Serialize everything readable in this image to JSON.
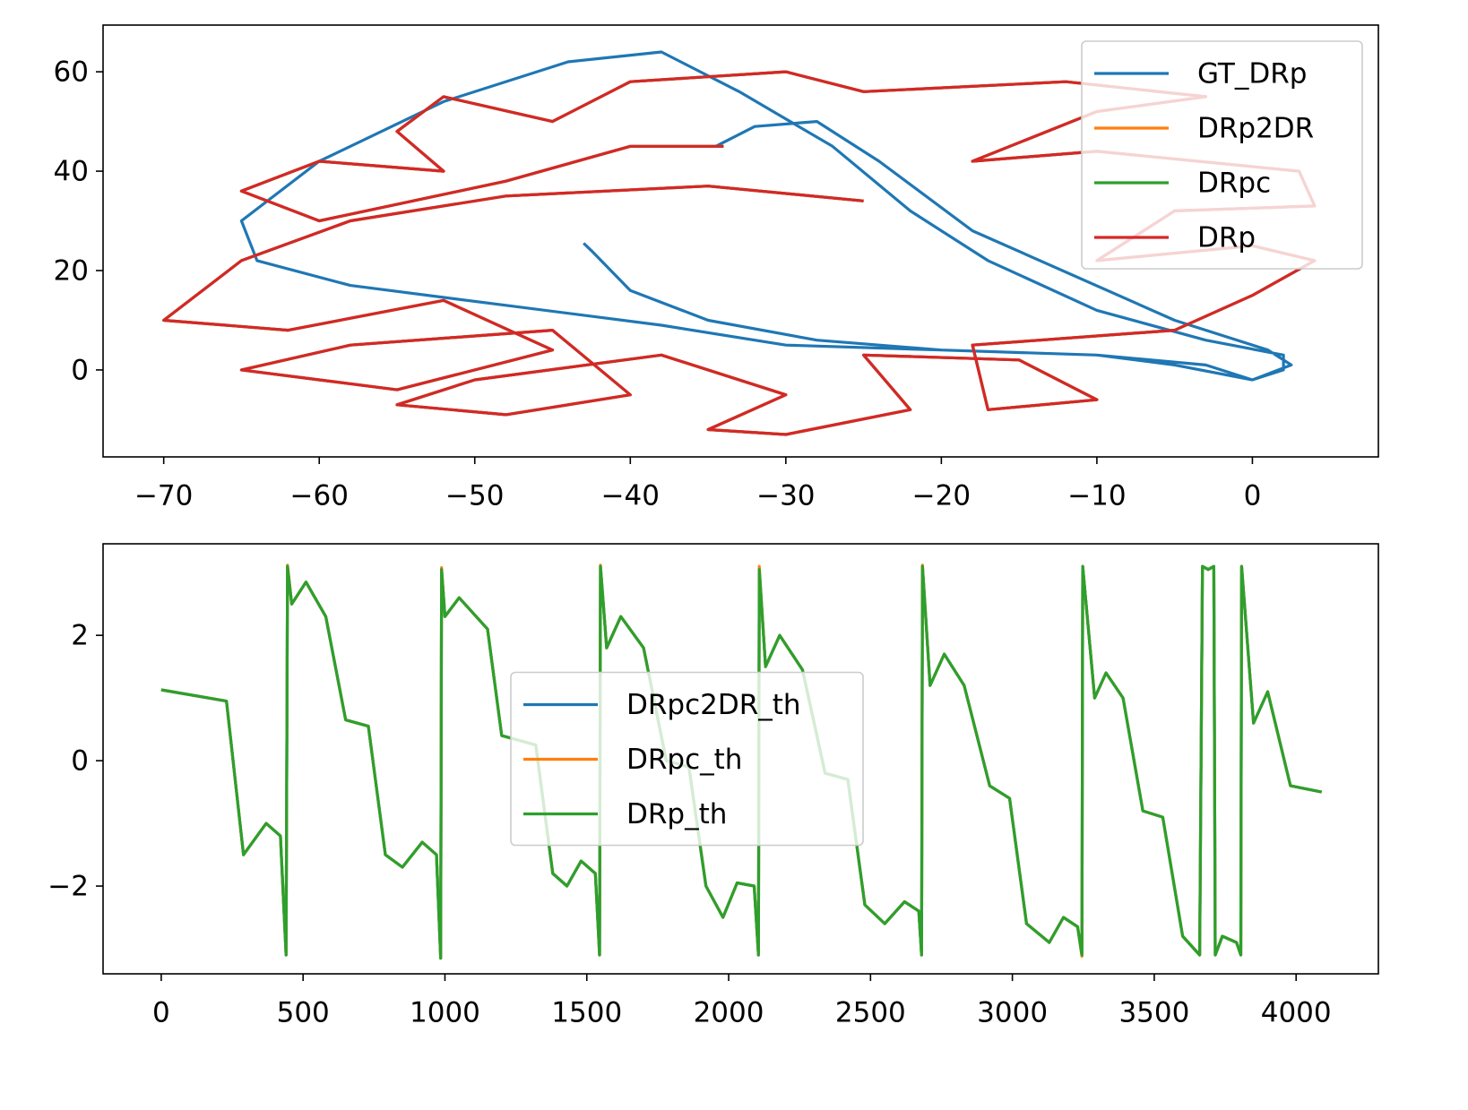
{
  "chart_data": [
    {
      "type": "line",
      "legend": "upper right",
      "xlim": [
        -73.9,
        8.1
      ],
      "ylim": [
        -17.5,
        69.4
      ],
      "xticks": [
        {
          "value": -70,
          "label": "−70"
        },
        {
          "value": -60,
          "label": "−60"
        },
        {
          "value": -50,
          "label": "−50"
        },
        {
          "value": -40,
          "label": "−40"
        },
        {
          "value": -30,
          "label": "−30"
        },
        {
          "value": -20,
          "label": "−20"
        },
        {
          "value": -10,
          "label": "−10"
        },
        0
      ],
      "yticks": [
        0,
        20,
        40,
        60
      ],
      "series": [
        {
          "name": "GT_DRp",
          "color": "#1f77b4",
          "x": [
            -43,
            -42.5,
            -40,
            -35,
            -28,
            -20,
            -10,
            -5,
            0,
            2,
            2,
            -3,
            -10,
            -17,
            -22,
            -27,
            -33,
            -38,
            -44,
            -52,
            -60,
            -65,
            -64,
            -58,
            -48,
            -38,
            -30,
            -20,
            -10,
            -3,
            0,
            2.5,
            1,
            -5,
            -18,
            -24,
            -28,
            -32,
            -34.5
          ],
          "values": [
            25.5,
            24,
            16,
            10,
            6,
            4,
            3,
            1,
            -2,
            0,
            3,
            6,
            12,
            22,
            32,
            45,
            56,
            64,
            62,
            54,
            42,
            30,
            22,
            17,
            13,
            9,
            5,
            4,
            3,
            1,
            -2,
            1,
            4,
            10,
            28,
            42,
            50,
            49,
            45
          ]
        },
        {
          "name": "DRp2DR",
          "color": "#ff7f0e",
          "x": [
            -25,
            -35,
            -48,
            -58,
            -65,
            -70,
            -62,
            -52,
            -45,
            -55,
            -60,
            -65,
            -58,
            -45,
            -40,
            -48,
            -55,
            -50,
            -38,
            -30,
            -35,
            -30,
            -22,
            -25,
            -15,
            -10,
            -17,
            -18,
            -5,
            0,
            4,
            0,
            -10,
            -5,
            4,
            3,
            -10,
            -18,
            -10,
            -3,
            -12,
            -25,
            -30,
            -40,
            -45,
            -52,
            -55,
            -52,
            -60,
            -65,
            -60,
            -48,
            -40,
            -34
          ],
          "values": [
            34,
            37,
            35,
            30,
            22,
            10,
            8,
            14,
            4,
            -4,
            -2,
            0,
            5,
            8,
            -5,
            -9,
            -7,
            -2,
            3,
            -5,
            -12,
            -13,
            -8,
            3,
            2,
            -6,
            -8,
            5,
            8,
            15,
            22,
            25,
            22,
            32,
            33,
            40,
            44,
            42,
            52,
            55,
            58,
            56,
            60,
            58,
            50,
            55,
            48,
            40,
            42,
            36,
            30,
            38,
            45,
            45
          ]
        },
        {
          "name": "DRpc",
          "color": "#2ca02c",
          "x": [
            -25,
            -35,
            -48,
            -58,
            -65,
            -70,
            -62,
            -52,
            -45,
            -55,
            -60,
            -65,
            -58,
            -45,
            -40,
            -48,
            -55,
            -50,
            -38,
            -30,
            -35,
            -30,
            -22,
            -25,
            -15,
            -10,
            -17,
            -18,
            -5,
            0,
            4,
            0,
            -10,
            -5,
            4,
            3,
            -10,
            -18,
            -10,
            -3,
            -12,
            -25,
            -30,
            -40,
            -45,
            -52,
            -55,
            -52,
            -60,
            -65,
            -60,
            -48,
            -40,
            -34
          ],
          "values": [
            34,
            37,
            35,
            30,
            22,
            10,
            8,
            14,
            4,
            -4,
            -2,
            0,
            5,
            8,
            -5,
            -9,
            -7,
            -2,
            3,
            -5,
            -12,
            -13,
            -8,
            3,
            2,
            -6,
            -8,
            5,
            8,
            15,
            22,
            25,
            22,
            32,
            33,
            40,
            44,
            42,
            52,
            55,
            58,
            56,
            60,
            58,
            50,
            55,
            48,
            40,
            42,
            36,
            30,
            38,
            45,
            45
          ]
        },
        {
          "name": "DRp",
          "color": "#d62728",
          "x": [
            -25,
            -35,
            -48,
            -58,
            -65,
            -70,
            -62,
            -52,
            -45,
            -55,
            -60,
            -65,
            -58,
            -45,
            -40,
            -48,
            -55,
            -50,
            -38,
            -30,
            -35,
            -30,
            -22,
            -25,
            -15,
            -10,
            -17,
            -18,
            -5,
            0,
            4,
            0,
            -10,
            -5,
            4,
            3,
            -10,
            -18,
            -10,
            -3,
            -12,
            -25,
            -30,
            -40,
            -45,
            -52,
            -55,
            -52,
            -60,
            -65,
            -60,
            -48,
            -40,
            -34
          ],
          "values": [
            34,
            37,
            35,
            30,
            22,
            10,
            8,
            14,
            4,
            -4,
            -2,
            0,
            5,
            8,
            -5,
            -9,
            -7,
            -2,
            3,
            -5,
            -12,
            -13,
            -8,
            3,
            2,
            -6,
            -8,
            5,
            8,
            15,
            22,
            25,
            22,
            32,
            33,
            40,
            44,
            42,
            52,
            55,
            58,
            56,
            60,
            58,
            50,
            55,
            48,
            40,
            42,
            36,
            30,
            38,
            45,
            45
          ]
        }
      ]
    },
    {
      "type": "line",
      "legend": "center",
      "xlim": [
        -205,
        4290
      ],
      "ylim": [
        -3.4,
        3.46
      ],
      "xticks": [
        0,
        500,
        1000,
        1500,
        2000,
        2500,
        3000,
        3500,
        4000
      ],
      "yticks": [
        {
          "value": -2,
          "label": "−2"
        },
        0,
        2
      ],
      "x": [
        0,
        230,
        290,
        370,
        420,
        440,
        445,
        460,
        510,
        580,
        650,
        730,
        790,
        850,
        920,
        970,
        985,
        988,
        1000,
        1050,
        1150,
        1200,
        1320,
        1380,
        1430,
        1480,
        1530,
        1545,
        1548,
        1570,
        1620,
        1700,
        1780,
        1860,
        1920,
        1980,
        2030,
        2090,
        2105,
        2108,
        2130,
        2180,
        2260,
        2340,
        2420,
        2480,
        2550,
        2620,
        2670,
        2680,
        2683,
        2710,
        2760,
        2830,
        2920,
        2990,
        3050,
        3130,
        3180,
        3230,
        3245,
        3248,
        3290,
        3330,
        3390,
        3460,
        3530,
        3600,
        3660,
        3670,
        3690,
        3710,
        3715,
        3740,
        3790,
        3805,
        3808,
        3850,
        3900,
        3980,
        4090
      ],
      "series": [
        {
          "name": "DRpc2DR_th",
          "color": "#1f77b4",
          "values": [
            1.13,
            0.95,
            -1.5,
            -1.0,
            -1.2,
            -3.1,
            3.1,
            2.5,
            2.85,
            2.3,
            0.65,
            0.55,
            -1.5,
            -1.7,
            -1.3,
            -1.5,
            -3.15,
            3.05,
            2.3,
            2.6,
            2.1,
            0.4,
            0.25,
            -1.8,
            -2.0,
            -1.6,
            -1.8,
            -3.1,
            3.1,
            1.8,
            2.3,
            1.8,
            0.0,
            -0.1,
            -2.0,
            -2.5,
            -1.95,
            -2.0,
            -3.1,
            3.05,
            1.5,
            2.0,
            1.45,
            -0.2,
            -0.3,
            -2.3,
            -2.6,
            -2.25,
            -2.4,
            -3.1,
            3.1,
            1.2,
            1.7,
            1.2,
            -0.4,
            -0.6,
            -2.6,
            -2.9,
            -2.5,
            -2.65,
            -3.1,
            3.1,
            1.0,
            1.4,
            1.0,
            -0.8,
            -0.9,
            -2.8,
            -3.1,
            3.1,
            3.05,
            3.1,
            -3.1,
            -2.8,
            -2.9,
            -3.1,
            3.1,
            0.6,
            1.1,
            -0.4,
            -0.5
          ]
        },
        {
          "name": "DRpc_th",
          "color": "#ff7f0e",
          "values": [
            1.13,
            0.95,
            -1.5,
            -1.0,
            -1.2,
            -3.1,
            3.12,
            2.5,
            2.85,
            2.3,
            0.65,
            0.55,
            -1.5,
            -1.7,
            -1.3,
            -1.5,
            -3.15,
            3.08,
            2.3,
            2.6,
            2.1,
            0.4,
            0.25,
            -1.8,
            -2.0,
            -1.6,
            -1.8,
            -3.1,
            3.12,
            1.8,
            2.3,
            1.8,
            0.0,
            -0.1,
            -2.0,
            -2.5,
            -1.95,
            -2.0,
            -3.1,
            3.1,
            1.5,
            2.0,
            1.45,
            -0.2,
            -0.3,
            -2.3,
            -2.6,
            -2.25,
            -2.4,
            -3.1,
            3.12,
            1.2,
            1.7,
            1.2,
            -0.4,
            -0.6,
            -2.6,
            -2.9,
            -2.5,
            -2.65,
            -3.12,
            3.1,
            1.0,
            1.4,
            1.0,
            -0.8,
            -0.9,
            -2.8,
            -3.1,
            3.1,
            3.05,
            3.1,
            -3.1,
            -2.8,
            -2.9,
            -3.1,
            3.1,
            0.6,
            1.1,
            -0.4,
            -0.5
          ]
        },
        {
          "name": "DRp_th",
          "color": "#2ca02c",
          "values": [
            1.13,
            0.95,
            -1.5,
            -1.0,
            -1.2,
            -3.1,
            3.1,
            2.5,
            2.85,
            2.3,
            0.65,
            0.55,
            -1.5,
            -1.7,
            -1.3,
            -1.5,
            -3.15,
            3.05,
            2.3,
            2.6,
            2.1,
            0.4,
            0.25,
            -1.8,
            -2.0,
            -1.6,
            -1.8,
            -3.1,
            3.1,
            1.8,
            2.3,
            1.8,
            0.0,
            -0.1,
            -2.0,
            -2.5,
            -1.95,
            -2.0,
            -3.1,
            3.05,
            1.5,
            2.0,
            1.45,
            -0.2,
            -0.3,
            -2.3,
            -2.6,
            -2.25,
            -2.4,
            -3.1,
            3.1,
            1.2,
            1.7,
            1.2,
            -0.4,
            -0.6,
            -2.6,
            -2.9,
            -2.5,
            -2.65,
            -3.1,
            3.1,
            1.0,
            1.4,
            1.0,
            -0.8,
            -0.9,
            -2.8,
            -3.1,
            3.1,
            3.05,
            3.1,
            -3.1,
            -2.8,
            -2.9,
            -3.1,
            3.1,
            0.6,
            1.1,
            -0.4,
            -0.5
          ]
        }
      ]
    }
  ]
}
